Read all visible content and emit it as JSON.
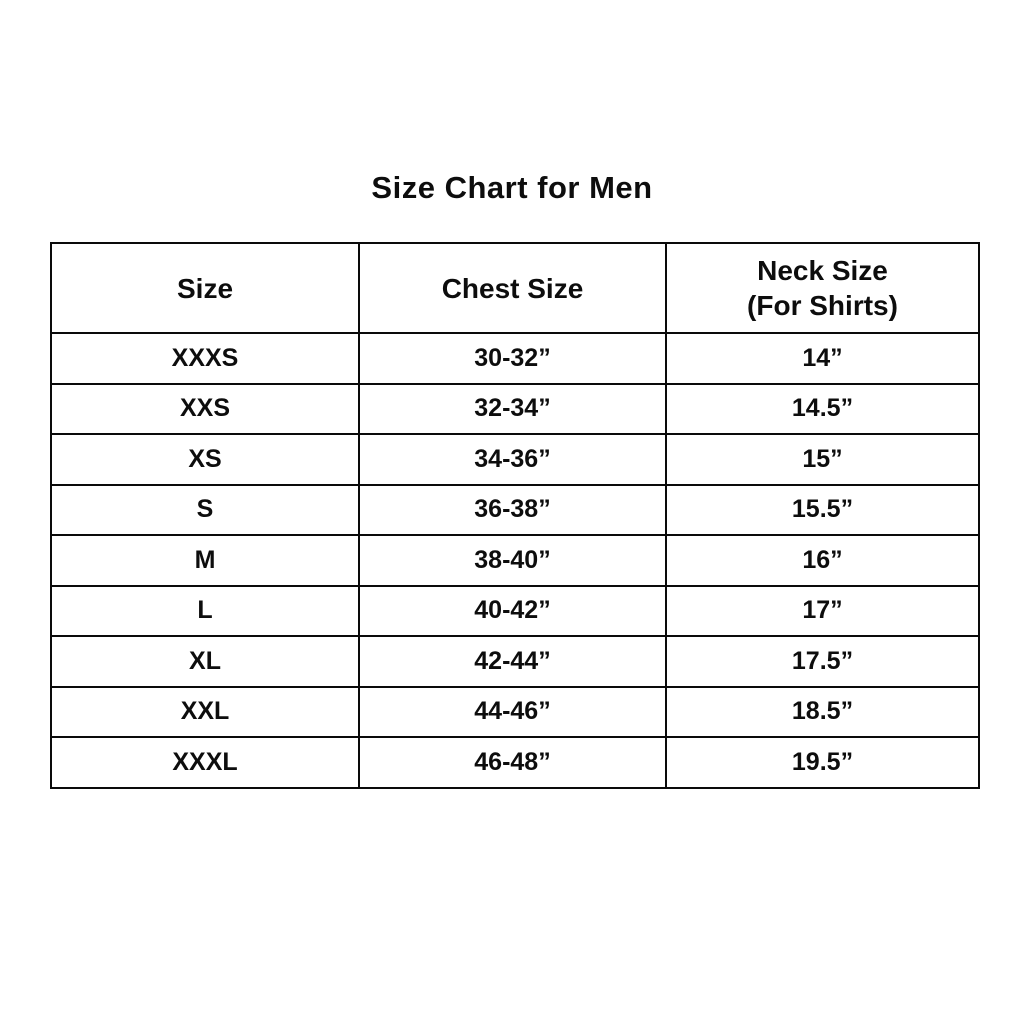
{
  "page": {
    "background_color": "#ffffff",
    "text_color": "#0d0d0d",
    "border_color": "#0a0a0a"
  },
  "chart_data": {
    "type": "table",
    "title": "Size Chart for Men",
    "columns": [
      "Size",
      "Chest Size",
      "Neck Size (For Shirts)"
    ],
    "header_lines": [
      [
        "Size",
        ""
      ],
      [
        "Chest Size",
        ""
      ],
      [
        "Neck Size",
        "(For Shirts)"
      ]
    ],
    "rows": [
      [
        "XXXS",
        "30-32”",
        "14”"
      ],
      [
        "XXS",
        "32-34”",
        "14.5”"
      ],
      [
        "XS",
        "34-36”",
        "15”"
      ],
      [
        "S",
        "36-38”",
        "15.5”"
      ],
      [
        "M",
        "38-40”",
        "16”"
      ],
      [
        "L",
        "40-42”",
        "17”"
      ],
      [
        "XL",
        "42-44”",
        "17.5”"
      ],
      [
        "XXL",
        "44-46”",
        "18.5”"
      ],
      [
        "XXXL",
        "46-48”",
        "19.5”"
      ]
    ]
  }
}
